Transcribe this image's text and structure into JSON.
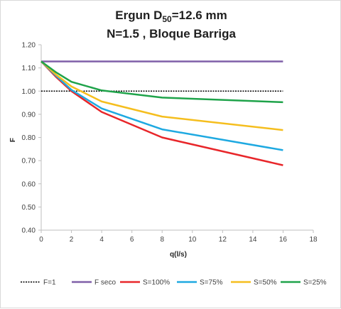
{
  "chart_data": {
    "type": "line",
    "title": {
      "line1_prefix": "Ergun D",
      "line1_sub": "50",
      "line1_suffix": "=12.6 mm",
      "line2": "N=1.5 , Bloque Barriga"
    },
    "xlabel": "q(l/s)",
    "ylabel": "F",
    "xlim": [
      0,
      18
    ],
    "ylim": [
      0.4,
      1.2
    ],
    "x_ticks": [
      "0",
      "2",
      "4",
      "6",
      "8",
      "10",
      "12",
      "14",
      "16",
      "18"
    ],
    "y_ticks": [
      "0.40",
      "0.50",
      "0.60",
      "0.70",
      "0.80",
      "0.90",
      "1.00",
      "1.10",
      "1.20"
    ],
    "grid": false,
    "legend_position": "bottom",
    "series": [
      {
        "name": "F=1",
        "color": "#000000",
        "style": "dotted",
        "x": [
          0,
          16
        ],
        "y": [
          1.0,
          1.0
        ]
      },
      {
        "name": "F seco",
        "color": "#7f5fa8",
        "style": "solid",
        "x": [
          0,
          16
        ],
        "y": [
          1.128,
          1.128
        ]
      },
      {
        "name": "S=100%",
        "color": "#e8262a",
        "style": "solid",
        "x": [
          0,
          1,
          2,
          4,
          8,
          16
        ],
        "y": [
          1.128,
          1.06,
          1.0,
          0.91,
          0.8,
          0.68
        ]
      },
      {
        "name": "S=75%",
        "color": "#1ea9e1",
        "style": "solid",
        "x": [
          0,
          1,
          2,
          4,
          8,
          16
        ],
        "y": [
          1.128,
          1.065,
          1.005,
          0.925,
          0.835,
          0.745
        ]
      },
      {
        "name": "S=50%",
        "color": "#f5be1e",
        "style": "solid",
        "x": [
          0,
          1,
          2,
          4,
          8,
          16
        ],
        "y": [
          1.128,
          1.07,
          1.02,
          0.955,
          0.89,
          0.832
        ]
      },
      {
        "name": "S=25%",
        "color": "#1fa34a",
        "style": "solid",
        "x": [
          0,
          1,
          2,
          4,
          8,
          16
        ],
        "y": [
          1.128,
          1.08,
          1.04,
          1.003,
          0.972,
          0.952
        ]
      }
    ]
  }
}
